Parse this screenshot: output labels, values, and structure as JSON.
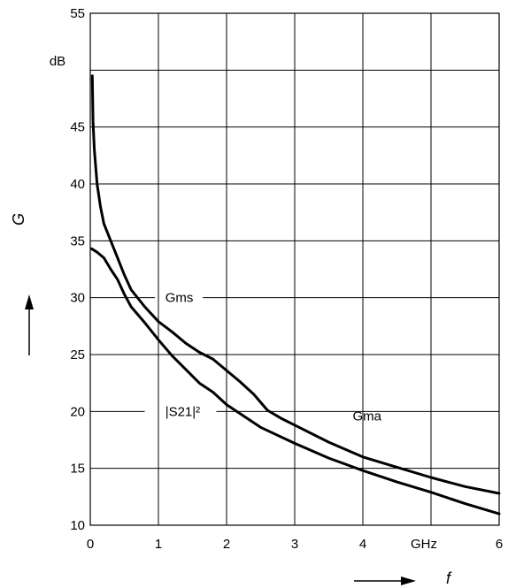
{
  "chart_data": {
    "type": "line",
    "xlabel": "f",
    "ylabel": "G",
    "x_unit": "GHz",
    "y_unit": "dB",
    "xlim": [
      0,
      6
    ],
    "ylim": [
      10,
      55
    ],
    "x_ticks": [
      "0",
      "1",
      "2",
      "3",
      "4",
      "6"
    ],
    "y_ticks": [
      "10",
      "15",
      "20",
      "25",
      "30",
      "35",
      "40",
      "45",
      "55"
    ],
    "grid": true,
    "series": [
      {
        "name": "Gms",
        "x": [
          0.03,
          0.04,
          0.06,
          0.1,
          0.15,
          0.2,
          0.3,
          0.4,
          0.5,
          0.6,
          0.8,
          1.0,
          1.2,
          1.4,
          1.6,
          1.8
        ],
        "y": [
          49.5,
          45.5,
          43,
          40,
          38,
          36.5,
          35,
          33.5,
          32,
          30.7,
          29.2,
          27.9,
          27.0,
          26.0,
          25.2,
          24.6
        ]
      },
      {
        "name": "Gma",
        "x": [
          1.8,
          2.0,
          2.2,
          2.4,
          2.6,
          2.8,
          3.0,
          3.5,
          4.0,
          4.5,
          5.0,
          5.5,
          6.0
        ],
        "y": [
          24.6,
          23.6,
          22.6,
          21.5,
          20.1,
          19.4,
          18.8,
          17.3,
          16.0,
          15.1,
          14.2,
          13.4,
          12.8
        ]
      },
      {
        "name": "|S21|²",
        "x": [
          0.02,
          0.1,
          0.2,
          0.3,
          0.4,
          0.5,
          0.6,
          0.8,
          1.0,
          1.2,
          1.4,
          1.6,
          1.8,
          2.0,
          2.5,
          3.0,
          3.5,
          4.0,
          4.5,
          5.0,
          5.5,
          6.0
        ],
        "y": [
          34.3,
          34.0,
          33.5,
          32.5,
          31.6,
          30.3,
          29.2,
          27.8,
          26.3,
          24.9,
          23.7,
          22.5,
          21.7,
          20.6,
          18.6,
          17.2,
          15.9,
          14.8,
          13.8,
          12.9,
          11.9,
          11.0
        ]
      }
    ],
    "annotations": [
      {
        "text": "Gms",
        "x": 1.1,
        "y": 30
      },
      {
        "text": "|S21|²",
        "x": 1.1,
        "y": 20
      },
      {
        "text": "Gma",
        "x": 3.85,
        "y": 19.6
      }
    ]
  }
}
